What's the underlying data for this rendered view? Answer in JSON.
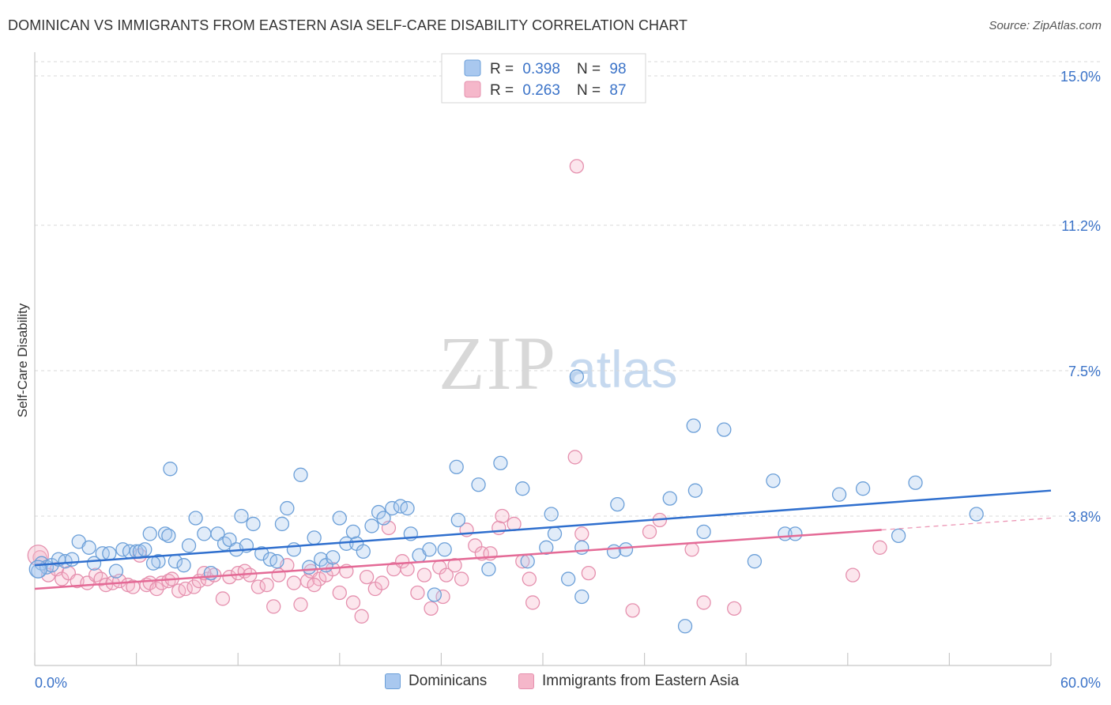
{
  "title": "DOMINICAN VS IMMIGRANTS FROM EASTERN ASIA SELF-CARE DISABILITY CORRELATION CHART",
  "source": "Source: ZipAtlas.com",
  "watermark": {
    "zip": "ZIP",
    "atlas": "atlas"
  },
  "colors": {
    "blue_fill": "#a9c8ef",
    "blue_stroke": "#6b9fd8",
    "blue_line": "#2f6fce",
    "pink_fill": "#f5b7ca",
    "pink_stroke": "#e590ae",
    "pink_line": "#e46a96",
    "tick_label": "#3b73c8",
    "grid": "#d9d9d9"
  },
  "legend": {
    "blue": {
      "r_label": "R =",
      "r_value": "0.398",
      "n_label": "N =",
      "n_value": "98"
    },
    "pink": {
      "r_label": "R =",
      "r_value": "0.263",
      "n_label": "N =",
      "n_value": "87"
    }
  },
  "chart_data": {
    "type": "scatter",
    "title": "DOMINICAN VS IMMIGRANTS FROM EASTERN ASIA SELF-CARE DISABILITY CORRELATION CHART",
    "xlabel": "",
    "ylabel": "Self-Care Disability",
    "xlim": [
      0,
      60
    ],
    "ylim": [
      0,
      15
    ],
    "x_tick_labels": [
      "0.0%",
      "60.0%"
    ],
    "y_ticks": [
      3.8,
      7.5,
      11.2,
      15.0
    ],
    "y_tick_labels": [
      "3.8%",
      "7.5%",
      "11.2%",
      "15.0%"
    ],
    "grid": true,
    "legend_position": "top-center",
    "series": [
      {
        "name": "Dominicans",
        "color": "#6b9fd8",
        "r": 0.398,
        "n": 98,
        "trend": {
          "x": [
            0,
            60
          ],
          "y": [
            2.55,
            4.45
          ]
        },
        "points": [
          [
            0.2,
            2.4
          ],
          [
            0.4,
            2.6
          ],
          [
            0.7,
            2.5
          ],
          [
            1.0,
            2.55
          ],
          [
            1.4,
            2.7
          ],
          [
            1.8,
            2.65
          ],
          [
            2.2,
            2.7
          ],
          [
            2.6,
            3.15
          ],
          [
            3.2,
            3.0
          ],
          [
            3.5,
            2.6
          ],
          [
            4.0,
            2.85
          ],
          [
            4.4,
            2.85
          ],
          [
            4.8,
            2.4
          ],
          [
            5.2,
            2.95
          ],
          [
            5.6,
            2.9
          ],
          [
            6.0,
            2.9
          ],
          [
            6.2,
            2.9
          ],
          [
            6.8,
            3.35
          ],
          [
            6.5,
            2.95
          ],
          [
            7.3,
            2.65
          ],
          [
            7.0,
            2.6
          ],
          [
            7.7,
            3.35
          ],
          [
            7.9,
            3.3
          ],
          [
            8.3,
            2.65
          ],
          [
            8.0,
            5.0
          ],
          [
            8.8,
            2.55
          ],
          [
            9.1,
            3.05
          ],
          [
            9.5,
            3.75
          ],
          [
            10.0,
            3.35
          ],
          [
            10.4,
            2.35
          ],
          [
            10.8,
            3.35
          ],
          [
            11.2,
            3.1
          ],
          [
            11.5,
            3.2
          ],
          [
            11.9,
            2.95
          ],
          [
            12.2,
            3.8
          ],
          [
            12.5,
            3.05
          ],
          [
            12.9,
            3.6
          ],
          [
            13.4,
            2.85
          ],
          [
            13.9,
            2.7
          ],
          [
            14.3,
            2.65
          ],
          [
            14.6,
            3.6
          ],
          [
            14.9,
            4.0
          ],
          [
            15.3,
            2.95
          ],
          [
            15.7,
            4.85
          ],
          [
            16.2,
            2.5
          ],
          [
            16.5,
            3.25
          ],
          [
            16.9,
            2.7
          ],
          [
            17.2,
            2.55
          ],
          [
            17.6,
            2.75
          ],
          [
            18.0,
            3.75
          ],
          [
            18.4,
            3.1
          ],
          [
            18.8,
            3.4
          ],
          [
            19.0,
            3.1
          ],
          [
            19.4,
            2.9
          ],
          [
            19.9,
            3.55
          ],
          [
            20.3,
            3.9
          ],
          [
            20.6,
            3.75
          ],
          [
            21.1,
            4.0
          ],
          [
            21.6,
            4.05
          ],
          [
            22.0,
            4.0
          ],
          [
            22.2,
            3.35
          ],
          [
            22.7,
            2.8
          ],
          [
            23.3,
            2.95
          ],
          [
            23.6,
            1.8
          ],
          [
            24.2,
            2.95
          ],
          [
            24.9,
            5.05
          ],
          [
            25.0,
            3.7
          ],
          [
            26.2,
            4.6
          ],
          [
            26.8,
            2.45
          ],
          [
            27.5,
            5.15
          ],
          [
            28.8,
            4.5
          ],
          [
            29.1,
            2.65
          ],
          [
            30.2,
            3.0
          ],
          [
            30.5,
            3.85
          ],
          [
            30.7,
            3.35
          ],
          [
            31.5,
            2.2
          ],
          [
            32.0,
            7.35
          ],
          [
            32.3,
            3.0
          ],
          [
            32.3,
            1.75
          ],
          [
            34.2,
            2.9
          ],
          [
            34.4,
            4.1
          ],
          [
            34.9,
            2.95
          ],
          [
            37.5,
            4.25
          ],
          [
            38.9,
            6.1
          ],
          [
            39.0,
            4.45
          ],
          [
            39.5,
            3.4
          ],
          [
            40.7,
            6.0
          ],
          [
            42.5,
            2.65
          ],
          [
            43.6,
            4.7
          ],
          [
            44.3,
            3.35
          ],
          [
            44.9,
            3.35
          ],
          [
            47.5,
            4.35
          ],
          [
            48.9,
            4.5
          ],
          [
            51.0,
            3.3
          ],
          [
            52.0,
            4.65
          ],
          [
            55.6,
            3.85
          ],
          [
            38.4,
            1.0
          ]
        ]
      },
      {
        "name": "Immigrants from Eastern Asia",
        "color": "#e590ae",
        "r": 0.263,
        "n": 87,
        "trend": {
          "x": [
            0,
            50
          ],
          "y": [
            1.95,
            3.45
          ]
        },
        "trend_dashed": {
          "x": [
            50,
            60
          ],
          "y": [
            3.45,
            3.75
          ]
        },
        "points": [
          [
            0.3,
            2.75
          ],
          [
            0.8,
            2.3
          ],
          [
            1.3,
            2.45
          ],
          [
            1.6,
            2.2
          ],
          [
            2.0,
            2.35
          ],
          [
            2.5,
            2.15
          ],
          [
            3.1,
            2.1
          ],
          [
            3.6,
            2.3
          ],
          [
            3.9,
            2.2
          ],
          [
            4.2,
            2.05
          ],
          [
            4.6,
            2.1
          ],
          [
            5.0,
            2.15
          ],
          [
            5.5,
            2.05
          ],
          [
            5.8,
            2.0
          ],
          [
            6.2,
            2.8
          ],
          [
            6.6,
            2.05
          ],
          [
            6.8,
            2.1
          ],
          [
            7.2,
            1.95
          ],
          [
            7.5,
            2.1
          ],
          [
            7.9,
            2.15
          ],
          [
            8.1,
            2.2
          ],
          [
            8.5,
            1.9
          ],
          [
            8.9,
            1.95
          ],
          [
            9.4,
            2.0
          ],
          [
            9.7,
            2.15
          ],
          [
            10.2,
            2.2
          ],
          [
            10.6,
            2.3
          ],
          [
            11.1,
            1.7
          ],
          [
            11.5,
            2.25
          ],
          [
            12.0,
            2.35
          ],
          [
            12.4,
            2.4
          ],
          [
            12.7,
            2.3
          ],
          [
            13.2,
            2.0
          ],
          [
            13.7,
            2.05
          ],
          [
            14.1,
            1.5
          ],
          [
            14.4,
            2.3
          ],
          [
            14.9,
            2.55
          ],
          [
            15.3,
            2.1
          ],
          [
            15.7,
            1.55
          ],
          [
            16.1,
            2.15
          ],
          [
            16.3,
            2.4
          ],
          [
            16.8,
            2.2
          ],
          [
            17.2,
            2.3
          ],
          [
            17.6,
            2.45
          ],
          [
            18.0,
            1.85
          ],
          [
            18.4,
            2.4
          ],
          [
            18.8,
            1.6
          ],
          [
            19.3,
            1.25
          ],
          [
            19.6,
            2.25
          ],
          [
            20.1,
            1.95
          ],
          [
            20.5,
            2.1
          ],
          [
            20.9,
            3.5
          ],
          [
            21.2,
            2.45
          ],
          [
            21.7,
            2.65
          ],
          [
            22.0,
            2.45
          ],
          [
            22.6,
            1.85
          ],
          [
            23.0,
            2.3
          ],
          [
            23.4,
            1.45
          ],
          [
            23.9,
            2.5
          ],
          [
            24.3,
            2.3
          ],
          [
            24.8,
            2.55
          ],
          [
            25.2,
            2.2
          ],
          [
            25.5,
            3.45
          ],
          [
            26.0,
            3.05
          ],
          [
            26.4,
            2.85
          ],
          [
            26.9,
            2.85
          ],
          [
            27.4,
            3.5
          ],
          [
            27.6,
            3.8
          ],
          [
            28.3,
            3.6
          ],
          [
            28.8,
            2.65
          ],
          [
            29.2,
            2.2
          ],
          [
            29.4,
            1.6
          ],
          [
            31.9,
            5.3
          ],
          [
            32.0,
            12.7
          ],
          [
            32.3,
            3.35
          ],
          [
            32.7,
            2.35
          ],
          [
            35.3,
            1.4
          ],
          [
            36.3,
            3.4
          ],
          [
            36.9,
            3.7
          ],
          [
            38.8,
            2.95
          ],
          [
            39.5,
            1.6
          ],
          [
            41.3,
            1.45
          ],
          [
            48.3,
            2.3
          ],
          [
            49.9,
            3.0
          ],
          [
            24.1,
            1.75
          ],
          [
            16.5,
            2.05
          ],
          [
            10.0,
            2.35
          ]
        ]
      }
    ]
  },
  "axis": {
    "y_label": "Self-Care Disability",
    "x_min_label": "0.0%",
    "x_max_label": "60.0%"
  },
  "bottom_legend": {
    "blue_label": "Dominicans",
    "pink_label": "Immigrants from Eastern Asia"
  }
}
